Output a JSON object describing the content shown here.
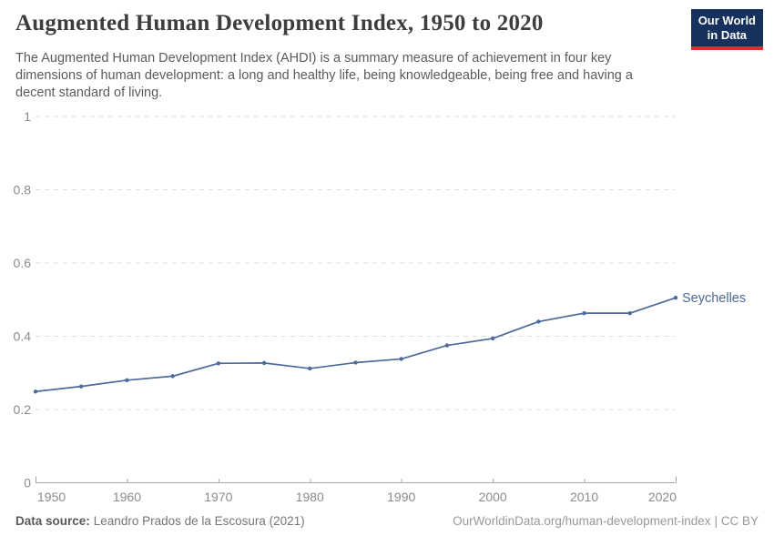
{
  "header": {
    "title": "Augmented Human Development Index, 1950 to 2020",
    "subtitle_lines": [
      "The Augmented Human Development Index (AHDI) is a summary measure of achievement in four key",
      "dimensions of human development: a long and healthy life, being knowledgeable, being free and having a",
      "decent standard of living."
    ]
  },
  "logo": {
    "line1": "Our World",
    "line2": "in Data",
    "bg_color": "#15315c",
    "accent_color": "#d0342c"
  },
  "chart_data": {
    "type": "line",
    "title": "Augmented Human Development Index, 1950 to 2020",
    "xlabel": "",
    "ylabel": "",
    "xlim": [
      1950,
      2020
    ],
    "ylim": [
      0,
      1
    ],
    "grid": "horizontal-dashed",
    "legend_position": "end-of-line-label",
    "xticks": [
      1950,
      1960,
      1970,
      1980,
      1990,
      2000,
      2010,
      2020
    ],
    "yticks": [
      0,
      0.2,
      0.4,
      0.6,
      0.8,
      1
    ],
    "ytick_labels": [
      "0",
      "0.2",
      "0.4",
      "0.6",
      "0.8",
      "1"
    ],
    "series": [
      {
        "name": "Seychelles",
        "color": "#4c6a9c",
        "x": [
          1950,
          1955,
          1960,
          1965,
          1970,
          1975,
          1980,
          1985,
          1990,
          1995,
          2000,
          2005,
          2010,
          2015,
          2020
        ],
        "values": [
          0.249,
          0.263,
          0.28,
          0.291,
          0.326,
          0.327,
          0.312,
          0.328,
          0.338,
          0.375,
          0.394,
          0.44,
          0.463,
          0.463,
          0.505
        ]
      }
    ]
  },
  "colors": {
    "line": "#4c6a9c",
    "grid": "#dedede",
    "axis": "#a6a6a6",
    "tick_label": "#8b8b8b"
  },
  "footer": {
    "datasource_label": "Data source:",
    "datasource_value": "Leandro Prados de la Escosura (2021)",
    "credit_url": "OurWorldinData.org/human-development-index",
    "credit_license": "| CC BY"
  }
}
